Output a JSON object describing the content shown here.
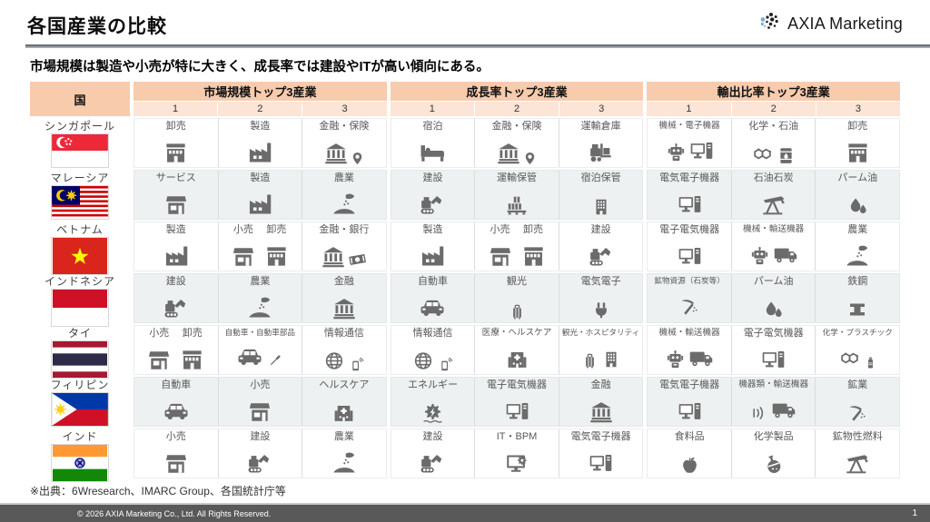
{
  "header": {
    "title": "各国産業の比較",
    "logo_text": "AXIA Marketing"
  },
  "subtitle": "市場規模は製造や小売が特に大きく、成長率では建設やITが高い傾向にある。",
  "table": {
    "country_header": "国",
    "groups": [
      {
        "label": "市場規模トップ3産業"
      },
      {
        "label": "成長率トップ3産業"
      },
      {
        "label": "輸出比率トップ3産業"
      }
    ],
    "rank_labels": [
      "1",
      "2",
      "3"
    ],
    "rows": [
      {
        "country": "シンガポール",
        "flag": "singapore",
        "groups": [
          [
            [
              {
                "label": "卸売",
                "icons": [
                  "shop2"
                ]
              }
            ],
            [
              {
                "label": "製造",
                "icons": [
                  "factory"
                ]
              }
            ],
            [
              {
                "label": "金融・保険",
                "icons": [
                  "bank",
                  "pin"
                ]
              }
            ]
          ],
          [
            [
              {
                "label": "宿泊",
                "icons": [
                  "bed"
                ]
              }
            ],
            [
              {
                "label": "金融・保険",
                "icons": [
                  "bank",
                  "pin"
                ]
              }
            ],
            [
              {
                "label": "運輸倉庫",
                "icons": [
                  "forklift"
                ]
              }
            ]
          ],
          [
            [
              {
                "label": "機械・電子機器",
                "icons": [
                  "robot",
                  "computer"
                ]
              }
            ],
            [
              {
                "label": "化学・石油",
                "icons": [
                  "molecule",
                  "barrel"
                ]
              }
            ],
            [
              {
                "label": "卸売",
                "icons": [
                  "shop2"
                ]
              }
            ]
          ]
        ]
      },
      {
        "country": "マレーシア",
        "flag": "malaysia",
        "groups": [
          [
            [
              {
                "label": "サービス",
                "icons": [
                  "shop"
                ]
              }
            ],
            [
              {
                "label": "製造",
                "icons": [
                  "factory"
                ]
              }
            ],
            [
              {
                "label": "農業",
                "icons": [
                  "agri"
                ]
              }
            ]
          ],
          [
            [
              {
                "label": "建設",
                "icons": [
                  "excavator"
                ]
              }
            ],
            [
              {
                "label": "運輸保管",
                "icons": [
                  "pallet"
                ]
              }
            ],
            [
              {
                "label": "宿泊保管",
                "icons": [
                  "building"
                ]
              }
            ]
          ],
          [
            [
              {
                "label": "電気電子機器",
                "icons": [
                  "computer"
                ]
              }
            ],
            [
              {
                "label": "石油石炭",
                "icons": [
                  "oilpump"
                ]
              }
            ],
            [
              {
                "label": "パーム油",
                "icons": [
                  "drops"
                ]
              }
            ]
          ]
        ]
      },
      {
        "country": "ベトナム",
        "flag": "vietnam",
        "groups": [
          [
            [
              {
                "label": "製造",
                "icons": [
                  "factory"
                ]
              }
            ],
            [
              {
                "label": "小売",
                "icons": [
                  "shop"
                ]
              },
              {
                "label": "卸売",
                "icons": [
                  "shop2"
                ]
              }
            ],
            [
              {
                "label": "金融・銀行",
                "icons": [
                  "bank",
                  "banknote"
                ]
              }
            ]
          ],
          [
            [
              {
                "label": "製造",
                "icons": [
                  "factory"
                ]
              }
            ],
            [
              {
                "label": "小売",
                "icons": [
                  "shop"
                ]
              },
              {
                "label": "卸売",
                "icons": [
                  "shop2"
                ]
              }
            ],
            [
              {
                "label": "建設",
                "icons": [
                  "excavator"
                ]
              }
            ]
          ],
          [
            [
              {
                "label": "電子電気機器",
                "icons": [
                  "computer"
                ]
              }
            ],
            [
              {
                "label": "機械・輸送機器",
                "icons": [
                  "robot",
                  "truck"
                ]
              }
            ],
            [
              {
                "label": "農業",
                "icons": [
                  "agri"
                ]
              }
            ]
          ]
        ]
      },
      {
        "country": "インドネシア",
        "flag": "indonesia",
        "groups": [
          [
            [
              {
                "label": "建設",
                "icons": [
                  "excavator"
                ]
              }
            ],
            [
              {
                "label": "農業",
                "icons": [
                  "agri"
                ]
              }
            ],
            [
              {
                "label": "金融",
                "icons": [
                  "bank"
                ]
              }
            ]
          ],
          [
            [
              {
                "label": "自動車",
                "icons": [
                  "car"
                ]
              }
            ],
            [
              {
                "label": "観光",
                "icons": [
                  "luggage"
                ]
              }
            ],
            [
              {
                "label": "電気電子",
                "icons": [
                  "plug"
                ]
              }
            ]
          ],
          [
            [
              {
                "label": "鉱物資源（石炭等）",
                "icons": [
                  "pickaxe"
                ]
              }
            ],
            [
              {
                "label": "パーム油",
                "icons": [
                  "drops"
                ]
              }
            ],
            [
              {
                "label": "鉄鋼",
                "icons": [
                  "steel"
                ]
              }
            ]
          ]
        ]
      },
      {
        "country": "タイ",
        "flag": "thailand",
        "groups": [
          [
            [
              {
                "label": "小売",
                "icons": [
                  "shop"
                ]
              },
              {
                "label": "卸売",
                "icons": [
                  "shop2"
                ]
              }
            ],
            [
              {
                "label": "自動車・自動車部品",
                "icons": [
                  "car",
                  "screwdriver"
                ]
              }
            ],
            [
              {
                "label": "情報通信",
                "icons": [
                  "globe",
                  "phone"
                ]
              }
            ]
          ],
          [
            [
              {
                "label": "情報通信",
                "icons": [
                  "globe",
                  "phone"
                ]
              }
            ],
            [
              {
                "label": "医療・ヘルスケア",
                "icons": [
                  "hospital"
                ]
              }
            ],
            [
              {
                "label": "観光・ホスピタリティ",
                "icons": [
                  "luggage",
                  "building"
                ]
              }
            ]
          ],
          [
            [
              {
                "label": "機械・輸送機器",
                "icons": [
                  "robot",
                  "truck"
                ]
              }
            ],
            [
              {
                "label": "電子電気機器",
                "icons": [
                  "computer"
                ]
              }
            ],
            [
              {
                "label": "化学・プラスチック",
                "icons": [
                  "molecule",
                  "bottle"
                ]
              }
            ]
          ]
        ]
      },
      {
        "country": "フィリピン",
        "flag": "philippines",
        "groups": [
          [
            [
              {
                "label": "自動車",
                "icons": [
                  "car"
                ]
              }
            ],
            [
              {
                "label": "小売",
                "icons": [
                  "shop"
                ]
              }
            ],
            [
              {
                "label": "ヘルスケア",
                "icons": [
                  "hospital"
                ]
              }
            ]
          ],
          [
            [
              {
                "label": "エネルギー",
                "icons": [
                  "energy"
                ]
              }
            ],
            [
              {
                "label": "電子電気機器",
                "icons": [
                  "computer"
                ]
              }
            ],
            [
              {
                "label": "金融",
                "icons": [
                  "bank"
                ]
              }
            ]
          ],
          [
            [
              {
                "label": "電気電子機器",
                "icons": [
                  "computer"
                ]
              }
            ],
            [
              {
                "label": "機器類・輸送機器",
                "icons": [
                  "soundwave",
                  "truck"
                ]
              }
            ],
            [
              {
                "label": "鉱業",
                "icons": [
                  "pickaxe"
                ]
              }
            ]
          ]
        ]
      },
      {
        "country": "インド",
        "flag": "india",
        "groups": [
          [
            [
              {
                "label": "小売",
                "icons": [
                  "shop"
                ]
              }
            ],
            [
              {
                "label": "建設",
                "icons": [
                  "excavator"
                ]
              }
            ],
            [
              {
                "label": "農業",
                "icons": [
                  "agri"
                ]
              }
            ]
          ],
          [
            [
              {
                "label": "建設",
                "icons": [
                  "excavator"
                ]
              }
            ],
            [
              {
                "label": "IT・BPM",
                "icons": [
                  "computergear"
                ]
              }
            ],
            [
              {
                "label": "電気電子機器",
                "icons": [
                  "computer"
                ]
              }
            ]
          ],
          [
            [
              {
                "label": "食料品",
                "icons": [
                  "apple"
                ]
              }
            ],
            [
              {
                "label": "化学製品",
                "icons": [
                  "flask"
                ]
              }
            ],
            [
              {
                "label": "鉱物性燃料",
                "icons": [
                  "oilpump"
                ]
              }
            ]
          ]
        ]
      }
    ]
  },
  "source_note": "※出典：6Wresearch、IMARC Group、各国統計庁等",
  "footer": {
    "copyright": "© 2026 AXIA Marketing Co., Ltd. All Rights Reserved.",
    "page": "1"
  }
}
